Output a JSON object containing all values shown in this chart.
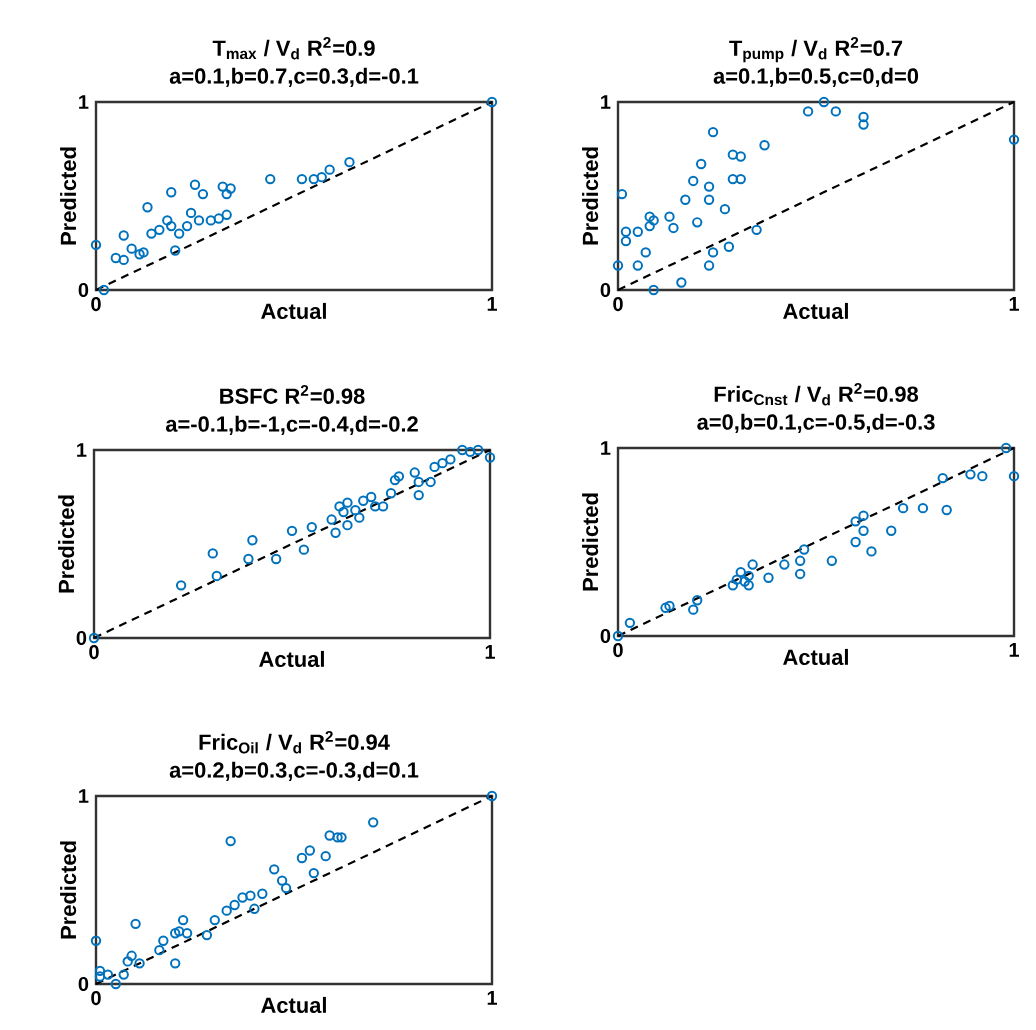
{
  "chart_data": [
    {
      "type": "scatter",
      "title": "T$_{max}$ / V$_{d}$ R$^{2}$=0.9",
      "subtitle": "a=0.1,b=0.7,c=0.3,d=-0.1",
      "xlabel": "Actual",
      "ylabel": "Predicted",
      "xlim": [
        0,
        1
      ],
      "ylim": [
        0,
        1
      ],
      "xticks": [
        0,
        1
      ],
      "yticks": [
        0,
        1
      ],
      "marker": "circle",
      "series": [
        {
          "color": "#0072bd",
          "x": [
            1,
            0,
            0.02,
            0.05,
            0.07,
            0.07,
            0.09,
            0.11,
            0.12,
            0.13,
            0.14,
            0.16,
            0.18,
            0.19,
            0.19,
            0.2,
            0.21,
            0.23,
            0.24,
            0.25,
            0.26,
            0.27,
            0.29,
            0.31,
            0.32,
            0.33,
            0.33,
            0.34,
            0.44,
            0.52,
            0.55,
            0.57,
            0.59,
            0.64
          ],
          "values": [
            1,
            0.24,
            0,
            0.17,
            0.16,
            0.29,
            0.22,
            0.19,
            0.2,
            0.44,
            0.3,
            0.32,
            0.37,
            0.34,
            0.52,
            0.21,
            0.3,
            0.34,
            0.41,
            0.56,
            0.37,
            0.51,
            0.37,
            0.38,
            0.55,
            0.51,
            0.4,
            0.54,
            0.59,
            0.59,
            0.59,
            0.6,
            0.64,
            0.68
          ]
        },
        {
          "type": "line",
          "color": "#000000",
          "line_style": "dashed",
          "marker": "none",
          "x": [
            0,
            1
          ],
          "values": [
            0,
            1
          ]
        }
      ]
    },
    {
      "type": "scatter",
      "title": "T$_{pump}$ / V$_{d}$ R$^{2}$=0.7",
      "subtitle": "a=0.1,b=0.5,c=0,d=0",
      "xlabel": "Actual",
      "ylabel": "Predicted",
      "xlim": [
        0,
        1
      ],
      "ylim": [
        0,
        1
      ],
      "xticks": [
        0,
        1
      ],
      "yticks": [
        0,
        1
      ],
      "marker": "circle",
      "series": [
        {
          "color": "#0072bd",
          "x": [
            0,
            0.01,
            0.02,
            0.02,
            0.05,
            0.05,
            0.07,
            0.08,
            0.08,
            0.09,
            0.09,
            0.13,
            0.14,
            0.16,
            0.17,
            0.19,
            0.2,
            0.21,
            0.23,
            0.23,
            0.23,
            0.24,
            0.24,
            0.27,
            0.28,
            0.29,
            0.29,
            0.31,
            0.31,
            0.35,
            0.37,
            0.48,
            0.52,
            0.55,
            0.62,
            0.62,
            1
          ],
          "values": [
            0.13,
            0.51,
            0.31,
            0.26,
            0.31,
            0.13,
            0.2,
            0.39,
            0.34,
            0.37,
            0,
            0.39,
            0.33,
            0.04,
            0.48,
            0.58,
            0.36,
            0.67,
            0.55,
            0.48,
            0.13,
            0.84,
            0.2,
            0.43,
            0.23,
            0.59,
            0.72,
            0.71,
            0.59,
            0.32,
            0.77,
            0.95,
            1.0,
            0.95,
            0.92,
            0.88,
            0.8
          ]
        },
        {
          "type": "line",
          "color": "#000000",
          "line_style": "dashed",
          "marker": "none",
          "x": [
            0,
            1
          ],
          "values": [
            0,
            1
          ]
        }
      ]
    },
    {
      "type": "scatter",
      "title": "BSFC R$^{2}$=0.98",
      "subtitle": "a=-0.1,b=-1,c=-0.4,d=-0.2",
      "xlabel": "Actual",
      "ylabel": "Predicted",
      "xlim": [
        0,
        1
      ],
      "ylim": [
        0,
        1
      ],
      "xticks": [
        0,
        1
      ],
      "yticks": [
        0,
        1
      ],
      "marker": "circle",
      "series": [
        {
          "color": "#0072bd",
          "x": [
            0,
            0.22,
            0.3,
            0.31,
            0.39,
            0.4,
            0.46,
            0.5,
            0.53,
            0.55,
            0.6,
            0.61,
            0.62,
            0.63,
            0.64,
            0.64,
            0.66,
            0.67,
            0.68,
            0.7,
            0.71,
            0.73,
            0.75,
            0.76,
            0.77,
            0.81,
            0.82,
            0.82,
            0.85,
            0.86,
            0.88,
            0.9,
            0.93,
            0.95,
            0.97,
            1
          ],
          "values": [
            0,
            0.28,
            0.45,
            0.33,
            0.42,
            0.52,
            0.42,
            0.57,
            0.47,
            0.59,
            0.63,
            0.56,
            0.7,
            0.67,
            0.72,
            0.6,
            0.68,
            0.64,
            0.73,
            0.75,
            0.7,
            0.7,
            0.77,
            0.84,
            0.86,
            0.88,
            0.83,
            0.76,
            0.83,
            0.91,
            0.93,
            0.95,
            1.0,
            0.99,
            1.0,
            0.96
          ]
        },
        {
          "type": "line",
          "color": "#000000",
          "line_style": "dashed",
          "marker": "none",
          "x": [
            0,
            1
          ],
          "values": [
            0,
            1
          ]
        }
      ]
    },
    {
      "type": "scatter",
      "title": "Fric$_{Cnst}$  / V$_{d}$ R$^{2}$=0.98",
      "subtitle": "a=0,b=0.1,c=-0.5,d=-0.3",
      "xlabel": "Actual",
      "ylabel": "Predicted",
      "xlim": [
        0,
        1
      ],
      "ylim": [
        0,
        1
      ],
      "xticks": [
        0,
        1
      ],
      "yticks": [
        0,
        1
      ],
      "marker": "circle",
      "series": [
        {
          "color": "#0072bd",
          "x": [
            0,
            0.03,
            0.12,
            0.13,
            0.19,
            0.2,
            0.29,
            0.3,
            0.31,
            0.32,
            0.33,
            0.34,
            0.33,
            0.38,
            0.42,
            0.46,
            0.46,
            0.47,
            0.54,
            0.6,
            0.6,
            0.62,
            0.62,
            0.64,
            0.69,
            0.72,
            0.77,
            0.83,
            0.82,
            0.89,
            0.92,
            0.98,
            1
          ],
          "values": [
            0,
            0.07,
            0.15,
            0.16,
            0.14,
            0.19,
            0.27,
            0.3,
            0.34,
            0.29,
            0.32,
            0.38,
            0.27,
            0.31,
            0.38,
            0.33,
            0.4,
            0.46,
            0.4,
            0.5,
            0.61,
            0.64,
            0.56,
            0.45,
            0.56,
            0.68,
            0.68,
            0.67,
            0.84,
            0.86,
            0.85,
            1.0,
            0.85
          ]
        },
        {
          "type": "line",
          "color": "#000000",
          "line_style": "dashed",
          "marker": "none",
          "x": [
            0,
            1
          ],
          "values": [
            0,
            1
          ]
        }
      ]
    },
    {
      "type": "scatter",
      "title": "Fric$_{Oil}$ / V$_{d}$ R$^{2}$=0.94",
      "subtitle": "a=0.2,b=0.3,c=-0.3,d=0.1",
      "xlabel": "Actual",
      "ylabel": "Predicted",
      "xlim": [
        0,
        1
      ],
      "ylim": [
        0,
        1
      ],
      "xticks": [
        0,
        1
      ],
      "yticks": [
        0,
        1
      ],
      "marker": "circle",
      "series": [
        {
          "color": "#0072bd",
          "x": [
            1,
            0,
            0.01,
            0.01,
            0.03,
            0.05,
            0.07,
            0.08,
            0.09,
            0.1,
            0.11,
            0.16,
            0.17,
            0.2,
            0.2,
            0.21,
            0.22,
            0.23,
            0.28,
            0.3,
            0.33,
            0.34,
            0.35,
            0.37,
            0.39,
            0.4,
            0.42,
            0.45,
            0.47,
            0.48,
            0.52,
            0.54,
            0.55,
            0.58,
            0.59,
            0.61,
            0.62,
            0.7
          ],
          "values": [
            1,
            0.23,
            0.07,
            0.04,
            0.05,
            0,
            0.05,
            0.12,
            0.15,
            0.32,
            0.11,
            0.18,
            0.23,
            0.11,
            0.27,
            0.28,
            0.34,
            0.27,
            0.26,
            0.34,
            0.39,
            0.76,
            0.42,
            0.46,
            0.47,
            0.4,
            0.48,
            0.61,
            0.55,
            0.51,
            0.67,
            0.71,
            0.59,
            0.68,
            0.79,
            0.78,
            0.78,
            0.86
          ]
        },
        {
          "type": "line",
          "color": "#000000",
          "line_style": "dashed",
          "marker": "none",
          "x": [
            0,
            1
          ],
          "values": [
            0,
            1
          ]
        }
      ]
    }
  ]
}
